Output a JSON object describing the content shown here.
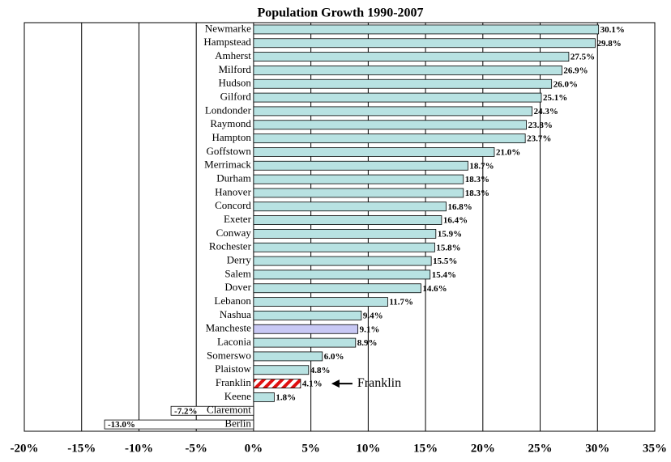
{
  "chart_data": {
    "type": "barh",
    "title": "Population Growth 1990-2007",
    "categories": [
      "Newmarke",
      "Hampstead",
      "Amherst",
      "Milford",
      "Hudson",
      "Gilford",
      "Londonder",
      "Raymond",
      "Hampton",
      "Goffstown",
      "Merrimack",
      "Durham",
      "Hanover",
      "Concord",
      "Exeter",
      "Conway",
      "Rochester",
      "Derry",
      "Salem",
      "Dover",
      "Lebanon",
      "Nashua",
      "Mancheste",
      "Laconia",
      "Somerswo",
      "Plaistow",
      "Franklin",
      "Keene",
      "Claremont",
      "Berlin"
    ],
    "values": [
      30.1,
      29.8,
      27.5,
      26.9,
      26.0,
      25.1,
      24.3,
      23.8,
      23.7,
      21.0,
      18.7,
      18.3,
      18.3,
      16.8,
      16.4,
      15.9,
      15.8,
      15.5,
      15.4,
      14.6,
      11.7,
      9.4,
      9.1,
      8.9,
      6.0,
      4.8,
      4.1,
      1.8,
      -7.2,
      -13.0
    ],
    "value_labels": [
      "30.1%",
      "29.8%",
      "27.5%",
      "26.9%",
      "26.0%",
      "25.1%",
      "24.3%",
      "23.8%",
      "23.7%",
      "21.0%",
      "18.7%",
      "18.3%",
      "18.3%",
      "16.8%",
      "16.4%",
      "15.9%",
      "15.8%",
      "15.5%",
      "15.4%",
      "14.6%",
      "11.7%",
      "9.4%",
      "9.1%",
      "8.9%",
      "6.0%",
      "4.8%",
      "4.1%",
      "1.8%",
      "-7.2%",
      "-13.0%"
    ],
    "colors": [
      "#b8e2e2",
      "#b8e2e2",
      "#b8e2e2",
      "#b8e2e2",
      "#b8e2e2",
      "#b8e2e2",
      "#b8e2e2",
      "#b8e2e2",
      "#b8e2e2",
      "#b8e2e2",
      "#b8e2e2",
      "#b8e2e2",
      "#b8e2e2",
      "#b8e2e2",
      "#b8e2e2",
      "#b8e2e2",
      "#b8e2e2",
      "#b8e2e2",
      "#b8e2e2",
      "#b8e2e2",
      "#b8e2e2",
      "#b8e2e2",
      "#c8c8f4",
      "#b8e2e2",
      "#b8e2e2",
      "#b8e2e2",
      "#e01010",
      "#b8e2e2",
      "#ffffff",
      "#ffffff"
    ],
    "hatched_categories": [
      "Franklin"
    ],
    "annotation": "Franklin",
    "xlim": [
      -20,
      35
    ],
    "xticks": [
      {
        "value": -20,
        "label": "-20%"
      },
      {
        "value": -15,
        "label": "-15%"
      },
      {
        "value": -10,
        "label": "-10%"
      },
      {
        "value": -5,
        "label": "-5%"
      },
      {
        "value": 0,
        "label": "0%"
      },
      {
        "value": 5,
        "label": "5%"
      },
      {
        "value": 10,
        "label": "10%"
      },
      {
        "value": 15,
        "label": "15%"
      },
      {
        "value": 20,
        "label": "20%"
      },
      {
        "value": 25,
        "label": "25%"
      },
      {
        "value": 30,
        "label": "30%"
      },
      {
        "value": 35,
        "label": "35%"
      }
    ],
    "grid": true
  }
}
